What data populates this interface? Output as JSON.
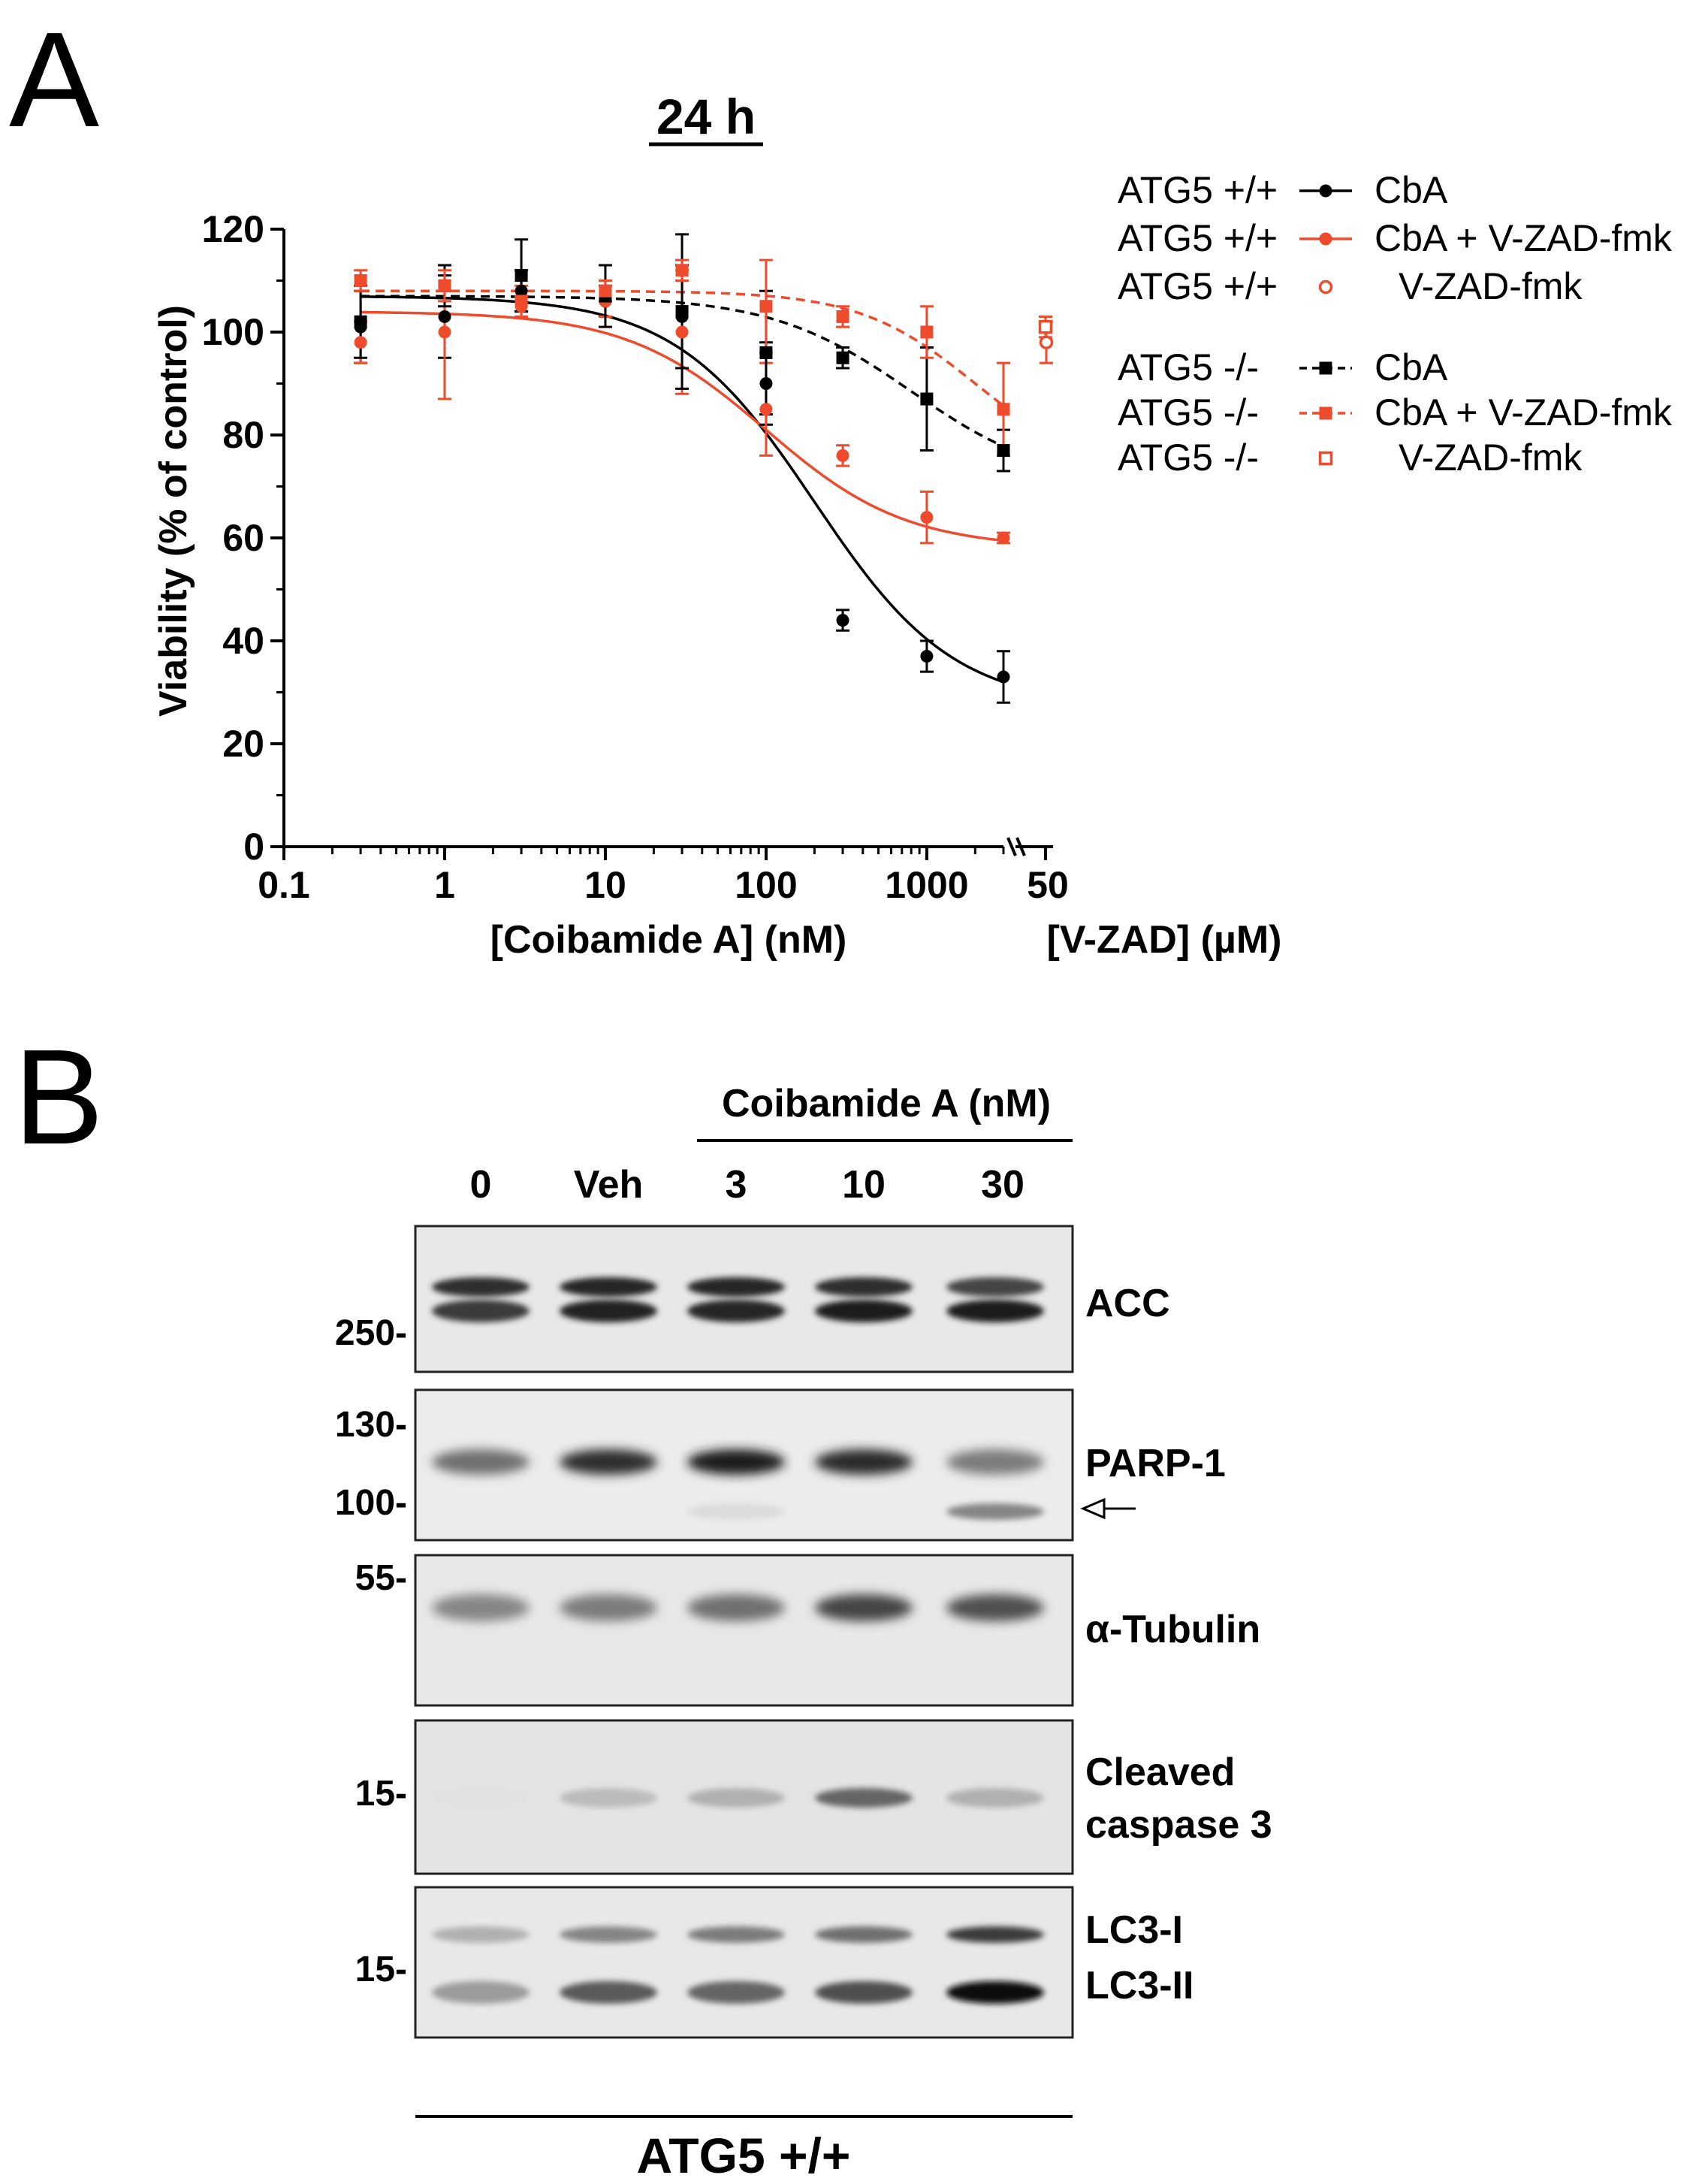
{
  "panel_a": {
    "letter": "A",
    "title": "24 h",
    "ylabel": "Viability (% of control)",
    "xlabel": "[Coibamide A] (nM)",
    "x2label": "[V-ZAD] (µM)",
    "x2_tick": "50",
    "legend": [
      {
        "cell": "ATG5 +/+",
        "treatment": "CbA",
        "color": "#000000",
        "marker": "circle",
        "line": "solid"
      },
      {
        "cell": "ATG5 +/+",
        "treatment": "CbA + V-ZAD-fmk",
        "color": "#ee4a2c",
        "marker": "circle",
        "line": "solid"
      },
      {
        "cell": "ATG5 +/+",
        "treatment": "V-ZAD-fmk",
        "color": "#ee4a2c",
        "marker": "open-circle",
        "line": "none"
      },
      {
        "cell": "ATG5 -/-",
        "treatment": "CbA",
        "color": "#000000",
        "marker": "square",
        "line": "dashed"
      },
      {
        "cell": "ATG5 -/-",
        "treatment": "CbA + V-ZAD-fmk",
        "color": "#ee4a2c",
        "marker": "square",
        "line": "dashed"
      },
      {
        "cell": "ATG5 -/-",
        "treatment": "V-ZAD-fmk",
        "color": "#ee4a2c",
        "marker": "open-square",
        "line": "none"
      }
    ]
  },
  "chart_data": {
    "type": "scatter",
    "title": "24 h",
    "xlabel": "[Coibamide A] (nM)",
    "ylabel": "Viability (% of control)",
    "x_scale": "log",
    "xlim": [
      0.1,
      3000
    ],
    "ylim": [
      0,
      120
    ],
    "x_ticks": [
      "0.1",
      "1",
      "10",
      "100",
      "1000"
    ],
    "y_ticks": [
      "0",
      "20",
      "40",
      "60",
      "80",
      "100",
      "120"
    ],
    "legend_position": "right",
    "series": [
      {
        "name": "ATG5 +/+ CbA",
        "color": "#000000",
        "marker": "circle",
        "line": "solid",
        "x": [
          0.3,
          1,
          3,
          10,
          30,
          100,
          300,
          1000,
          3000
        ],
        "y": [
          101,
          103,
          108,
          106,
          103,
          90,
          44,
          37,
          33
        ],
        "err": [
          7,
          8,
          4,
          3,
          10,
          8,
          2,
          3,
          5
        ],
        "fit": {
          "top": 107,
          "bottom": 27,
          "ec50": 200,
          "hill": 1.0
        }
      },
      {
        "name": "ATG5 +/+ CbA + V-ZAD-fmk",
        "color": "#ee4a2c",
        "marker": "circle",
        "line": "solid",
        "x": [
          0.3,
          1,
          3,
          10,
          30,
          100,
          300,
          1000,
          3000
        ],
        "y": [
          98,
          100,
          105,
          106,
          100,
          85,
          76,
          64,
          60
        ],
        "err": [
          4,
          13,
          2,
          3,
          12,
          9,
          2,
          5,
          1
        ],
        "fit": {
          "top": 104,
          "bottom": 58,
          "ec50": 100,
          "hill": 1.0
        }
      },
      {
        "name": "ATG5 -/- CbA",
        "color": "#000000",
        "marker": "square",
        "line": "dashed",
        "x": [
          0.3,
          1,
          3,
          10,
          30,
          100,
          300,
          1000,
          3000
        ],
        "y": [
          102,
          109,
          111,
          107,
          104,
          96,
          95,
          87,
          77
        ],
        "err": [
          7,
          4,
          7,
          6,
          15,
          12,
          2,
          10,
          4
        ],
        "fit": {
          "top": 107,
          "bottom": 70,
          "ec50": 800,
          "hill": 1.0
        }
      },
      {
        "name": "ATG5 -/- CbA + V-ZAD-fmk",
        "color": "#ee4a2c",
        "marker": "square",
        "line": "dashed",
        "x": [
          0.3,
          1,
          3,
          10,
          30,
          100,
          300,
          1000,
          3000
        ],
        "y": [
          110,
          109,
          106,
          108,
          112,
          105,
          103,
          100,
          85
        ],
        "err": [
          2,
          3,
          3,
          2,
          2,
          9,
          2,
          5,
          9
        ],
        "fit": {
          "top": 108,
          "bottom": 72,
          "ec50": 2000,
          "hill": 1.2
        }
      },
      {
        "name": "ATG5 +/+ V-ZAD-fmk",
        "color": "#ee4a2c",
        "marker": "open-circle",
        "line": "none",
        "x_vzad_uM": [
          50
        ],
        "y": [
          98
        ],
        "err": [
          4
        ]
      },
      {
        "name": "ATG5 -/- V-ZAD-fmk",
        "color": "#ee4a2c",
        "marker": "open-square",
        "line": "none",
        "x_vzad_uM": [
          50
        ],
        "y": [
          101
        ],
        "err": [
          2
        ]
      }
    ]
  },
  "panel_b": {
    "letter": "B",
    "treatment_header": "Coibamide A (nM)",
    "lanes": [
      "0",
      "Veh",
      "3",
      "10",
      "30"
    ],
    "cell_line": "ATG5 +/+",
    "blots": [
      {
        "label": "ACC",
        "markers": [
          "250-"
        ]
      },
      {
        "label": "PARP-1",
        "markers": [
          "130-",
          "100-"
        ]
      },
      {
        "label": "α-Tubulin",
        "markers": [
          "55-"
        ]
      },
      {
        "label_lines": [
          "Cleaved",
          "caspase 3"
        ],
        "markers": [
          "15-"
        ]
      },
      {
        "label_lines": [
          "LC3-I",
          "LC3-II"
        ],
        "markers": [
          "15-"
        ]
      }
    ]
  }
}
